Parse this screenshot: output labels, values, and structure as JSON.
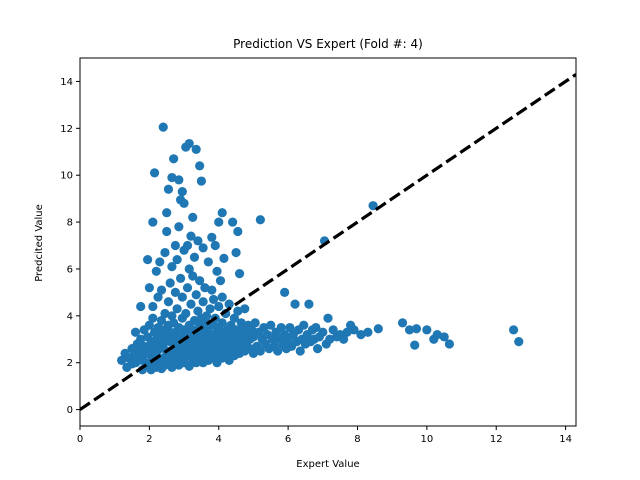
{
  "chart_data": {
    "type": "scatter",
    "title": "Prediction VS Expert (Fold #: 4)",
    "xlabel": "Expert Value",
    "ylabel": "Predcited Value",
    "xlim": [
      0,
      14.3
    ],
    "ylim": [
      -0.7,
      15.0
    ],
    "xticks": [
      0,
      2,
      4,
      6,
      8,
      10,
      12,
      14
    ],
    "yticks": [
      0,
      2,
      4,
      6,
      8,
      10,
      12,
      14
    ],
    "grid": false,
    "legend": "none",
    "marker_color": "#1f77b4",
    "reference_line": {
      "style": "dashed",
      "color": "#000000",
      "x": [
        0,
        14.3
      ],
      "y": [
        0,
        14.3
      ]
    },
    "series": [
      {
        "points": [
          [
            1.2,
            2.1
          ],
          [
            1.3,
            2.4
          ],
          [
            1.35,
            1.8
          ],
          [
            1.4,
            2.2
          ],
          [
            1.5,
            2.6
          ],
          [
            1.5,
            1.95
          ],
          [
            1.55,
            2.3
          ],
          [
            1.6,
            3.3
          ],
          [
            1.6,
            2.0
          ],
          [
            1.65,
            2.8
          ],
          [
            1.7,
            2.1
          ],
          [
            1.7,
            2.5
          ],
          [
            1.75,
            3.0
          ],
          [
            1.75,
            4.4
          ],
          [
            1.8,
            1.7
          ],
          [
            1.8,
            2.2
          ],
          [
            1.85,
            2.7
          ],
          [
            1.85,
            3.4
          ],
          [
            1.9,
            1.9
          ],
          [
            1.9,
            2.4
          ],
          [
            1.95,
            3.1
          ],
          [
            1.95,
            6.4
          ],
          [
            2.0,
            2.0
          ],
          [
            2.0,
            2.6
          ],
          [
            2.0,
            3.6
          ],
          [
            2.0,
            5.2
          ],
          [
            2.05,
            1.7
          ],
          [
            2.05,
            2.3
          ],
          [
            2.05,
            2.9
          ],
          [
            2.1,
            3.9
          ],
          [
            2.1,
            4.4
          ],
          [
            2.1,
            8.0
          ],
          [
            2.15,
            2.1
          ],
          [
            2.15,
            2.7
          ],
          [
            2.15,
            3.3
          ],
          [
            2.15,
            10.1
          ],
          [
            2.2,
            1.8
          ],
          [
            2.2,
            2.4
          ],
          [
            2.2,
            3.0
          ],
          [
            2.2,
            5.9
          ],
          [
            2.25,
            3.5
          ],
          [
            2.25,
            4.8
          ],
          [
            2.3,
            2.0
          ],
          [
            2.3,
            2.6
          ],
          [
            2.3,
            3.2
          ],
          [
            2.3,
            6.3
          ],
          [
            2.35,
            1.75
          ],
          [
            2.35,
            2.9
          ],
          [
            2.35,
            3.8
          ],
          [
            2.35,
            5.1
          ],
          [
            2.4,
            2.2
          ],
          [
            2.4,
            2.8
          ],
          [
            2.4,
            3.4
          ],
          [
            2.4,
            12.05
          ],
          [
            2.45,
            1.9
          ],
          [
            2.45,
            4.1
          ],
          [
            2.45,
            6.7
          ],
          [
            2.5,
            2.5
          ],
          [
            2.5,
            3.1
          ],
          [
            2.5,
            7.6
          ],
          [
            2.5,
            8.4
          ],
          [
            2.55,
            2.0
          ],
          [
            2.55,
            3.6
          ],
          [
            2.55,
            4.6
          ],
          [
            2.55,
            9.4
          ],
          [
            2.6,
            2.3
          ],
          [
            2.6,
            2.9
          ],
          [
            2.6,
            3.3
          ],
          [
            2.6,
            5.4
          ],
          [
            2.65,
            1.8
          ],
          [
            2.65,
            4.0
          ],
          [
            2.65,
            6.1
          ],
          [
            2.65,
            9.9
          ],
          [
            2.7,
            2.6
          ],
          [
            2.7,
            3.0
          ],
          [
            2.7,
            3.7
          ],
          [
            2.7,
            10.7
          ],
          [
            2.75,
            2.1
          ],
          [
            2.75,
            3.3
          ],
          [
            2.75,
            5.0
          ],
          [
            2.75,
            7.0
          ],
          [
            2.8,
            2.4
          ],
          [
            2.8,
            2.8
          ],
          [
            2.8,
            4.3
          ],
          [
            2.8,
            6.4
          ],
          [
            2.85,
            1.9
          ],
          [
            2.85,
            3.5
          ],
          [
            2.85,
            7.8
          ],
          [
            2.85,
            9.8
          ],
          [
            2.9,
            2.2
          ],
          [
            2.9,
            2.7
          ],
          [
            2.9,
            3.1
          ],
          [
            2.9,
            5.6
          ],
          [
            2.9,
            8.95
          ],
          [
            2.95,
            3.9
          ],
          [
            2.95,
            4.8
          ],
          [
            2.95,
            9.3
          ],
          [
            3.0,
            2.0
          ],
          [
            3.0,
            2.5
          ],
          [
            3.0,
            3.0
          ],
          [
            3.0,
            3.4
          ],
          [
            3.0,
            6.8
          ],
          [
            3.0,
            8.8
          ],
          [
            3.05,
            2.8
          ],
          [
            3.05,
            4.1
          ],
          [
            3.05,
            11.2
          ],
          [
            3.1,
            2.3
          ],
          [
            3.1,
            3.2
          ],
          [
            3.1,
            5.2
          ],
          [
            3.1,
            7.0
          ],
          [
            3.15,
            1.85
          ],
          [
            3.15,
            3.6
          ],
          [
            3.15,
            6.0
          ],
          [
            3.15,
            11.35
          ],
          [
            3.2,
            2.6
          ],
          [
            3.2,
            3.0
          ],
          [
            3.2,
            4.5
          ],
          [
            3.2,
            7.4
          ],
          [
            3.25,
            2.1
          ],
          [
            3.25,
            3.4
          ],
          [
            3.25,
            5.7
          ],
          [
            3.25,
            8.2
          ],
          [
            3.3,
            2.4
          ],
          [
            3.3,
            2.9
          ],
          [
            3.3,
            3.8
          ],
          [
            3.3,
            6.5
          ],
          [
            3.35,
            2.0
          ],
          [
            3.35,
            3.3
          ],
          [
            3.35,
            4.9
          ],
          [
            3.35,
            11.1
          ],
          [
            3.4,
            2.7
          ],
          [
            3.4,
            3.1
          ],
          [
            3.4,
            4.2
          ],
          [
            3.4,
            7.2
          ],
          [
            3.45,
            2.2
          ],
          [
            3.45,
            3.6
          ],
          [
            3.45,
            5.5
          ],
          [
            3.45,
            10.4
          ],
          [
            3.5,
            2.5
          ],
          [
            3.5,
            3.0
          ],
          [
            3.5,
            3.9
          ],
          [
            3.5,
            9.75
          ],
          [
            3.55,
            2.0
          ],
          [
            3.55,
            3.4
          ],
          [
            3.55,
            4.6
          ],
          [
            3.55,
            6.9
          ],
          [
            3.6,
            2.3
          ],
          [
            3.6,
            2.8
          ],
          [
            3.6,
            3.3
          ],
          [
            3.6,
            5.2
          ],
          [
            3.65,
            2.6
          ],
          [
            3.65,
            3.7
          ],
          [
            3.65,
            4.0
          ],
          [
            3.7,
            2.1
          ],
          [
            3.7,
            3.0
          ],
          [
            3.7,
            3.5
          ],
          [
            3.7,
            6.3
          ],
          [
            3.75,
            2.4
          ],
          [
            3.75,
            2.9
          ],
          [
            3.75,
            4.3
          ],
          [
            3.8,
            2.7
          ],
          [
            3.8,
            3.2
          ],
          [
            3.8,
            5.1
          ],
          [
            3.8,
            7.35
          ],
          [
            3.85,
            2.2
          ],
          [
            3.85,
            3.6
          ],
          [
            3.85,
            4.7
          ],
          [
            3.9,
            2.5
          ],
          [
            3.9,
            3.0
          ],
          [
            3.9,
            3.9
          ],
          [
            3.9,
            7.0
          ],
          [
            3.95,
            2.0
          ],
          [
            3.95,
            3.3
          ],
          [
            3.95,
            5.9
          ],
          [
            4.0,
            2.3
          ],
          [
            4.0,
            2.8
          ],
          [
            4.0,
            3.5
          ],
          [
            4.0,
            4.4
          ],
          [
            4.0,
            8.0
          ],
          [
            4.05,
            2.6
          ],
          [
            4.05,
            3.1
          ],
          [
            4.05,
            5.5
          ],
          [
            4.1,
            2.2
          ],
          [
            4.1,
            3.7
          ],
          [
            4.1,
            4.8
          ],
          [
            4.1,
            8.4
          ],
          [
            4.15,
            2.9
          ],
          [
            4.15,
            3.3
          ],
          [
            4.15,
            6.45
          ],
          [
            4.2,
            2.4
          ],
          [
            4.2,
            3.0
          ],
          [
            4.2,
            4.1
          ],
          [
            4.25,
            2.7
          ],
          [
            4.25,
            3.4
          ],
          [
            4.3,
            2.1
          ],
          [
            4.3,
            3.1
          ],
          [
            4.3,
            4.5
          ],
          [
            4.35,
            2.5
          ],
          [
            4.35,
            3.6
          ],
          [
            4.4,
            2.8
          ],
          [
            4.4,
            3.2
          ],
          [
            4.4,
            8.0
          ],
          [
            4.45,
            2.3
          ],
          [
            4.45,
            3.9
          ],
          [
            4.5,
            2.6
          ],
          [
            4.5,
            3.0
          ],
          [
            4.5,
            3.4
          ],
          [
            4.5,
            6.7
          ],
          [
            4.55,
            2.9
          ],
          [
            4.55,
            4.2
          ],
          [
            4.55,
            7.6
          ],
          [
            4.6,
            2.4
          ],
          [
            4.6,
            3.3
          ],
          [
            4.6,
            5.8
          ],
          [
            4.65,
            2.7
          ],
          [
            4.65,
            3.7
          ],
          [
            4.7,
            3.0
          ],
          [
            4.7,
            3.5
          ],
          [
            4.75,
            2.5
          ],
          [
            4.75,
            4.3
          ],
          [
            4.8,
            2.8
          ],
          [
            4.8,
            3.2
          ],
          [
            4.85,
            3.6
          ],
          [
            4.9,
            2.6
          ],
          [
            4.9,
            3.0
          ],
          [
            4.95,
            3.4
          ],
          [
            5.0,
            2.4
          ],
          [
            5.0,
            3.1
          ],
          [
            5.05,
            3.7
          ],
          [
            5.1,
            2.7
          ],
          [
            5.15,
            3.3
          ],
          [
            5.2,
            2.5
          ],
          [
            5.2,
            8.1
          ],
          [
            5.25,
            3.0
          ],
          [
            5.3,
            3.5
          ],
          [
            5.35,
            2.8
          ],
          [
            5.4,
            3.2
          ],
          [
            5.45,
            2.6
          ],
          [
            5.5,
            3.6
          ],
          [
            5.55,
            3.0
          ],
          [
            5.6,
            2.7
          ],
          [
            5.65,
            3.3
          ],
          [
            5.7,
            2.5
          ],
          [
            5.75,
            3.0
          ],
          [
            5.8,
            3.5
          ],
          [
            5.85,
            2.8
          ],
          [
            5.9,
            3.2
          ],
          [
            5.9,
            5.0
          ],
          [
            5.95,
            2.6
          ],
          [
            6.0,
            3.0
          ],
          [
            6.05,
            3.5
          ],
          [
            6.1,
            2.7
          ],
          [
            6.15,
            3.2
          ],
          [
            6.2,
            4.5
          ],
          [
            6.25,
            2.9
          ],
          [
            6.3,
            3.4
          ],
          [
            6.35,
            2.5
          ],
          [
            6.4,
            3.0
          ],
          [
            6.45,
            3.6
          ],
          [
            6.5,
            2.8
          ],
          [
            6.55,
            3.2
          ],
          [
            6.6,
            4.5
          ],
          [
            6.65,
            2.9
          ],
          [
            6.7,
            3.4
          ],
          [
            6.75,
            3.0
          ],
          [
            6.8,
            3.5
          ],
          [
            6.85,
            2.6
          ],
          [
            6.9,
            3.1
          ],
          [
            7.0,
            3.3
          ],
          [
            7.05,
            7.2
          ],
          [
            7.1,
            2.8
          ],
          [
            7.15,
            3.9
          ],
          [
            7.2,
            3.0
          ],
          [
            7.3,
            3.4
          ],
          [
            7.4,
            3.1
          ],
          [
            7.5,
            3.2
          ],
          [
            7.6,
            3.0
          ],
          [
            7.7,
            3.3
          ],
          [
            7.8,
            3.6
          ],
          [
            7.9,
            3.4
          ],
          [
            8.1,
            3.2
          ],
          [
            8.3,
            3.3
          ],
          [
            8.45,
            8.7
          ],
          [
            8.6,
            3.45
          ],
          [
            9.3,
            3.7
          ],
          [
            9.5,
            3.4
          ],
          [
            9.65,
            2.75
          ],
          [
            9.7,
            3.45
          ],
          [
            10.0,
            3.4
          ],
          [
            10.2,
            3.0
          ],
          [
            10.3,
            3.2
          ],
          [
            10.5,
            3.1
          ],
          [
            10.65,
            2.8
          ],
          [
            12.5,
            3.4
          ],
          [
            12.65,
            2.9
          ]
        ]
      }
    ]
  }
}
